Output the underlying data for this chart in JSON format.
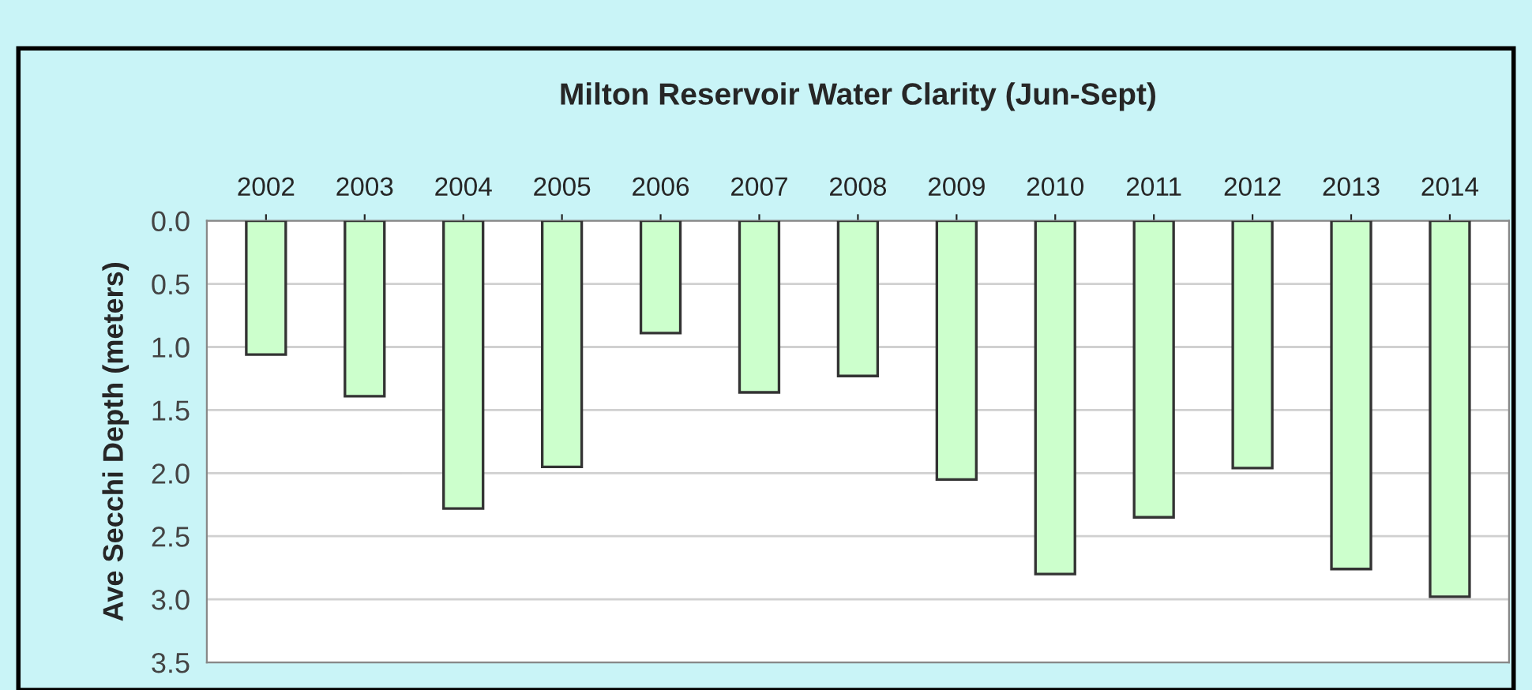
{
  "chart_data": {
    "type": "bar",
    "title": "Milton Reservoir Water Clarity (Jun-Sept)",
    "ylabel": "Ave Secchi Depth (meters)",
    "categories": [
      "2002",
      "2003",
      "2004",
      "2005",
      "2006",
      "2007",
      "2008",
      "2009",
      "2010",
      "2011",
      "2012",
      "2013",
      "2014"
    ],
    "values": [
      1.06,
      1.39,
      2.28,
      1.95,
      0.89,
      1.36,
      1.23,
      2.05,
      2.8,
      2.35,
      1.96,
      2.76,
      2.98
    ],
    "color": "#ccffcc",
    "ylim": [
      3.5,
      0
    ],
    "yticks": [
      {
        "value": 0,
        "label": "0.0"
      },
      {
        "value": 0.5,
        "label": "0.5"
      },
      {
        "value": 1,
        "label": "1.0"
      },
      {
        "value": 1.5,
        "label": "1.5"
      },
      {
        "value": 2,
        "label": "2.0"
      },
      {
        "value": 2.5,
        "label": "2.5"
      },
      {
        "value": 3,
        "label": "3.0"
      },
      {
        "value": 3.5,
        "label": "3.5"
      }
    ],
    "grid": "y"
  }
}
